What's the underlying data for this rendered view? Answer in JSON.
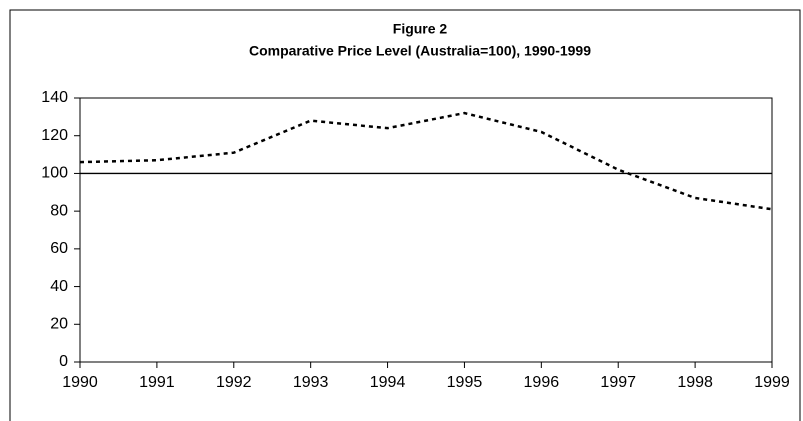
{
  "chart_data": {
    "type": "line",
    "title": "Figure 2",
    "subtitle": "Comparative Price Level (Australia=100), 1990-1999",
    "x": [
      1990,
      1991,
      1992,
      1993,
      1994,
      1995,
      1996,
      1997,
      1998,
      1999
    ],
    "series": [
      {
        "color": "#000000",
        "values": [
          106,
          107,
          111,
          128,
          124,
          132,
          122,
          102,
          87,
          81
        ]
      }
    ],
    "xlim": [
      1990,
      1999
    ],
    "xticks": [
      1990,
      1991,
      1992,
      1993,
      1994,
      1995,
      1996,
      1997,
      1998,
      1999
    ],
    "ylim": [
      0,
      140
    ],
    "yticks": [
      0,
      20,
      40,
      60,
      80,
      100,
      120,
      140
    ],
    "reference_line": 100,
    "grid": false
  }
}
